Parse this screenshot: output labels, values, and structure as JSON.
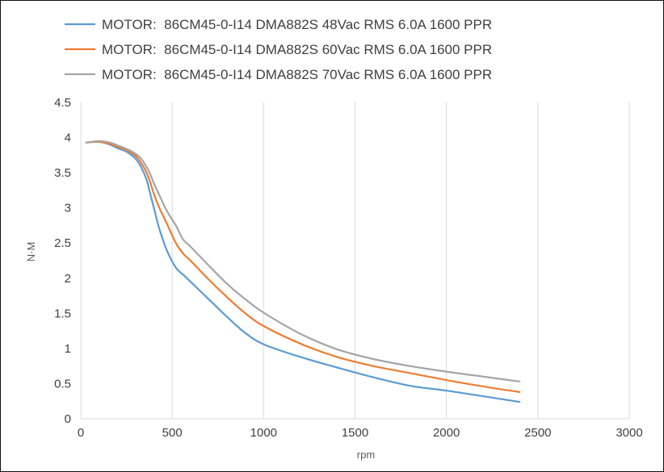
{
  "chart_data": {
    "type": "line",
    "title": "",
    "xlabel": "rpm",
    "ylabel": "N·M",
    "xlim": [
      0,
      3000
    ],
    "ylim": [
      0,
      4.5
    ],
    "x_ticks": [
      "0",
      "500",
      "1000",
      "1500",
      "2000",
      "2500",
      "3000"
    ],
    "y_ticks": [
      "0",
      "0.5",
      "1",
      "1.5",
      "2",
      "2.5",
      "3",
      "3.5",
      "4",
      "4.5"
    ],
    "grid": "vertical",
    "legend_position": "top",
    "series": [
      {
        "name": "MOTOR:  86CM45-0-I14 DMA882S 48Vac RMS 6.0A 1600 PPR",
        "color": "#5B9BD5",
        "x": [
          30,
          100,
          160,
          200,
          250,
          300,
          330,
          360,
          380,
          400,
          430,
          470,
          520,
          560,
          600,
          700,
          800,
          900,
          1000,
          1200,
          1400,
          1600,
          1800,
          2000,
          2200,
          2400
        ],
        "y": [
          3.93,
          3.94,
          3.9,
          3.85,
          3.8,
          3.7,
          3.58,
          3.4,
          3.2,
          3.0,
          2.7,
          2.4,
          2.15,
          2.05,
          1.95,
          1.7,
          1.45,
          1.22,
          1.06,
          0.88,
          0.73,
          0.59,
          0.47,
          0.4,
          0.32,
          0.24
        ]
      },
      {
        "name": "MOTOR:  86CM45-0-I14 DMA882S 60Vac RMS 6.0A 1600 PPR",
        "color": "#ED7D31",
        "x": [
          30,
          100,
          160,
          200,
          250,
          300,
          330,
          360,
          380,
          400,
          430,
          470,
          520,
          560,
          600,
          700,
          800,
          900,
          1000,
          1200,
          1400,
          1600,
          1800,
          2000,
          2200,
          2400
        ],
        "y": [
          3.93,
          3.94,
          3.91,
          3.87,
          3.82,
          3.74,
          3.64,
          3.5,
          3.36,
          3.2,
          3.0,
          2.78,
          2.5,
          2.35,
          2.25,
          1.98,
          1.73,
          1.5,
          1.32,
          1.07,
          0.88,
          0.75,
          0.65,
          0.55,
          0.46,
          0.38
        ]
      },
      {
        "name": "MOTOR:  86CM45-0-I14 DMA882S 70Vac RMS 6.0A 1600 PPR",
        "color": "#A5A5A5",
        "x": [
          30,
          100,
          160,
          200,
          250,
          300,
          330,
          360,
          380,
          400,
          430,
          470,
          520,
          560,
          600,
          700,
          800,
          900,
          1000,
          1200,
          1400,
          1600,
          1800,
          2000,
          2200,
          2400
        ],
        "y": [
          3.93,
          3.95,
          3.93,
          3.89,
          3.84,
          3.77,
          3.7,
          3.58,
          3.48,
          3.35,
          3.18,
          2.96,
          2.75,
          2.55,
          2.45,
          2.18,
          1.92,
          1.7,
          1.51,
          1.21,
          0.99,
          0.85,
          0.75,
          0.67,
          0.6,
          0.53
        ]
      }
    ]
  }
}
